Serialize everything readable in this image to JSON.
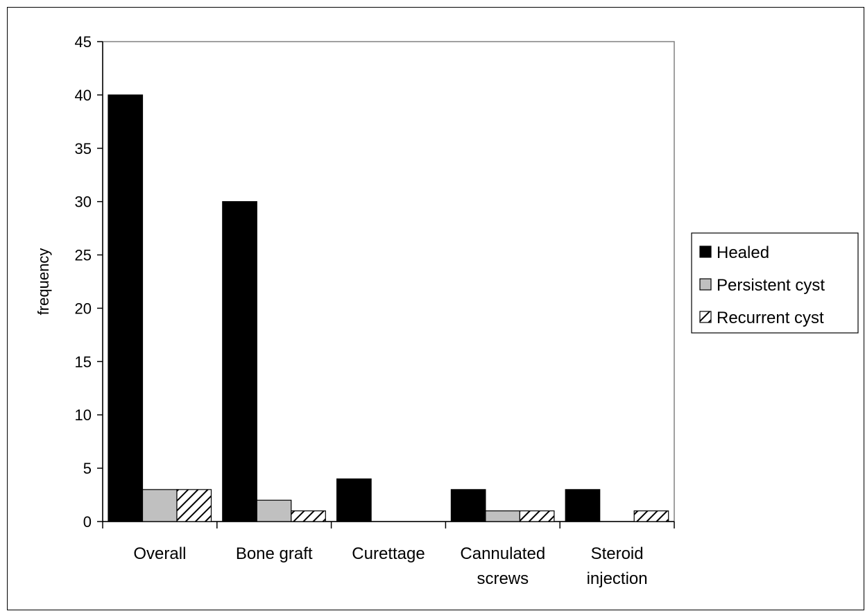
{
  "chart_data": {
    "type": "bar",
    "title": "",
    "xlabel": "",
    "ylabel": "frequency",
    "ylim": [
      0,
      45
    ],
    "yticks": [
      0,
      5,
      10,
      15,
      20,
      25,
      30,
      35,
      40,
      45
    ],
    "grid": false,
    "legend_position": "right",
    "categories": [
      [
        "Overall"
      ],
      [
        "Bone graft"
      ],
      [
        "Curettage"
      ],
      [
        "Cannulated",
        "screws"
      ],
      [
        "Steroid",
        "injection"
      ]
    ],
    "series": [
      {
        "name": "Healed",
        "fill": "#000000",
        "values": [
          40,
          30,
          4,
          3,
          3
        ]
      },
      {
        "name": "Persistent cyst",
        "fill": "#c0c0c0",
        "values": [
          3,
          2,
          0,
          1,
          0
        ]
      },
      {
        "name": "Recurrent cyst",
        "fill": "hatch",
        "values": [
          3,
          1,
          0,
          1,
          1
        ]
      }
    ]
  }
}
